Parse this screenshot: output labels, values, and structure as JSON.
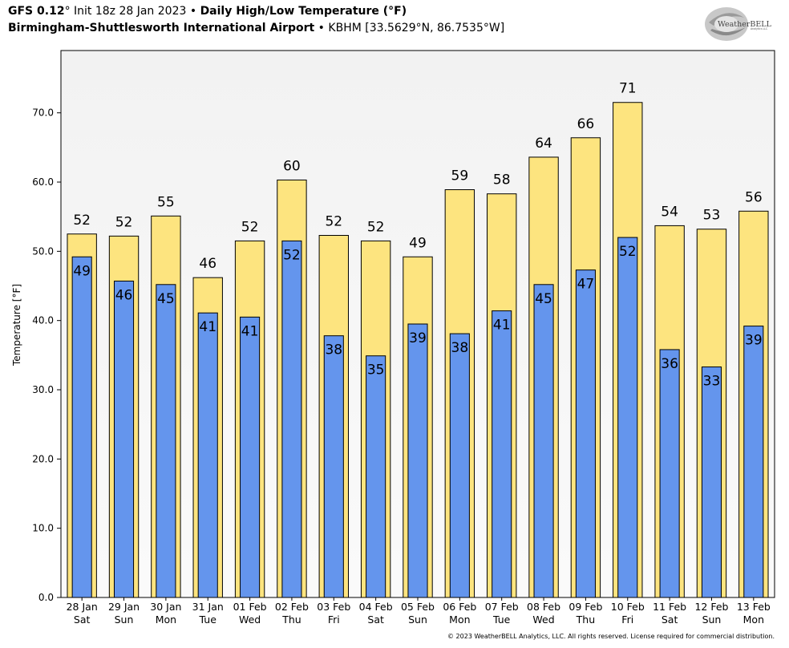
{
  "header": {
    "model": "GFS 0.12",
    "init": "° Init 18z 28 Jan 2023",
    "bullet": " • ",
    "product": "Daily High/Low Temperature (°F)",
    "station_name": "Birmingham-Shuttlesworth International Airport",
    "station_info": "KBHM [33.5629°N, 86.7535°W]"
  },
  "logo": {
    "text": "WeatherBELL",
    "subtext": "Analytics LLC"
  },
  "footer": {
    "copyright": "© 2023 WeatherBELL Analytics, LLC. All rights reserved. License required for commercial distribution."
  },
  "colors": {
    "high": "#fde47f",
    "low": "#6495ed",
    "plot_bg_top": "#f2f2f2",
    "plot_bg_bottom": "#fafafa"
  },
  "chart_data": {
    "type": "bar",
    "ylabel": "Temperature [°F]",
    "ylim": [
      0,
      79
    ],
    "yticks": [
      "0.0",
      "10.0",
      "20.0",
      "30.0",
      "40.0",
      "50.0",
      "60.0",
      "70.0"
    ],
    "categories": [
      {
        "date": "28 Jan",
        "day": "Sat"
      },
      {
        "date": "29 Jan",
        "day": "Sun"
      },
      {
        "date": "30 Jan",
        "day": "Mon"
      },
      {
        "date": "31 Jan",
        "day": "Tue"
      },
      {
        "date": "01 Feb",
        "day": "Wed"
      },
      {
        "date": "02 Feb",
        "day": "Thu"
      },
      {
        "date": "03 Feb",
        "day": "Fri"
      },
      {
        "date": "04 Feb",
        "day": "Sat"
      },
      {
        "date": "05 Feb",
        "day": "Sun"
      },
      {
        "date": "06 Feb",
        "day": "Mon"
      },
      {
        "date": "07 Feb",
        "day": "Tue"
      },
      {
        "date": "08 Feb",
        "day": "Wed"
      },
      {
        "date": "09 Feb",
        "day": "Thu"
      },
      {
        "date": "10 Feb",
        "day": "Fri"
      },
      {
        "date": "11 Feb",
        "day": "Sat"
      },
      {
        "date": "12 Feb",
        "day": "Sun"
      },
      {
        "date": "13 Feb",
        "day": "Mon"
      }
    ],
    "series": [
      {
        "values": [
          52.5,
          52.2,
          55.1,
          46.2,
          51.5,
          60.3,
          52.3,
          51.5,
          49.2,
          58.9,
          58.3,
          63.6,
          66.4,
          71.5,
          53.7,
          53.2,
          55.8
        ],
        "labels": [
          "52",
          "52",
          "55",
          "46",
          "52",
          "60",
          "52",
          "52",
          "49",
          "59",
          "58",
          "64",
          "66",
          "71",
          "54",
          "53",
          "56"
        ]
      },
      {
        "values": [
          49.2,
          45.7,
          45.2,
          41.1,
          40.5,
          51.5,
          37.8,
          34.9,
          39.5,
          38.1,
          41.4,
          45.2,
          47.3,
          52.0,
          35.8,
          33.3,
          39.2
        ],
        "labels": [
          "49",
          "46",
          "45",
          "41",
          "41",
          "52",
          "38",
          "35",
          "39",
          "38",
          "41",
          "45",
          "47",
          "52",
          "36",
          "33",
          "39"
        ]
      }
    ]
  }
}
